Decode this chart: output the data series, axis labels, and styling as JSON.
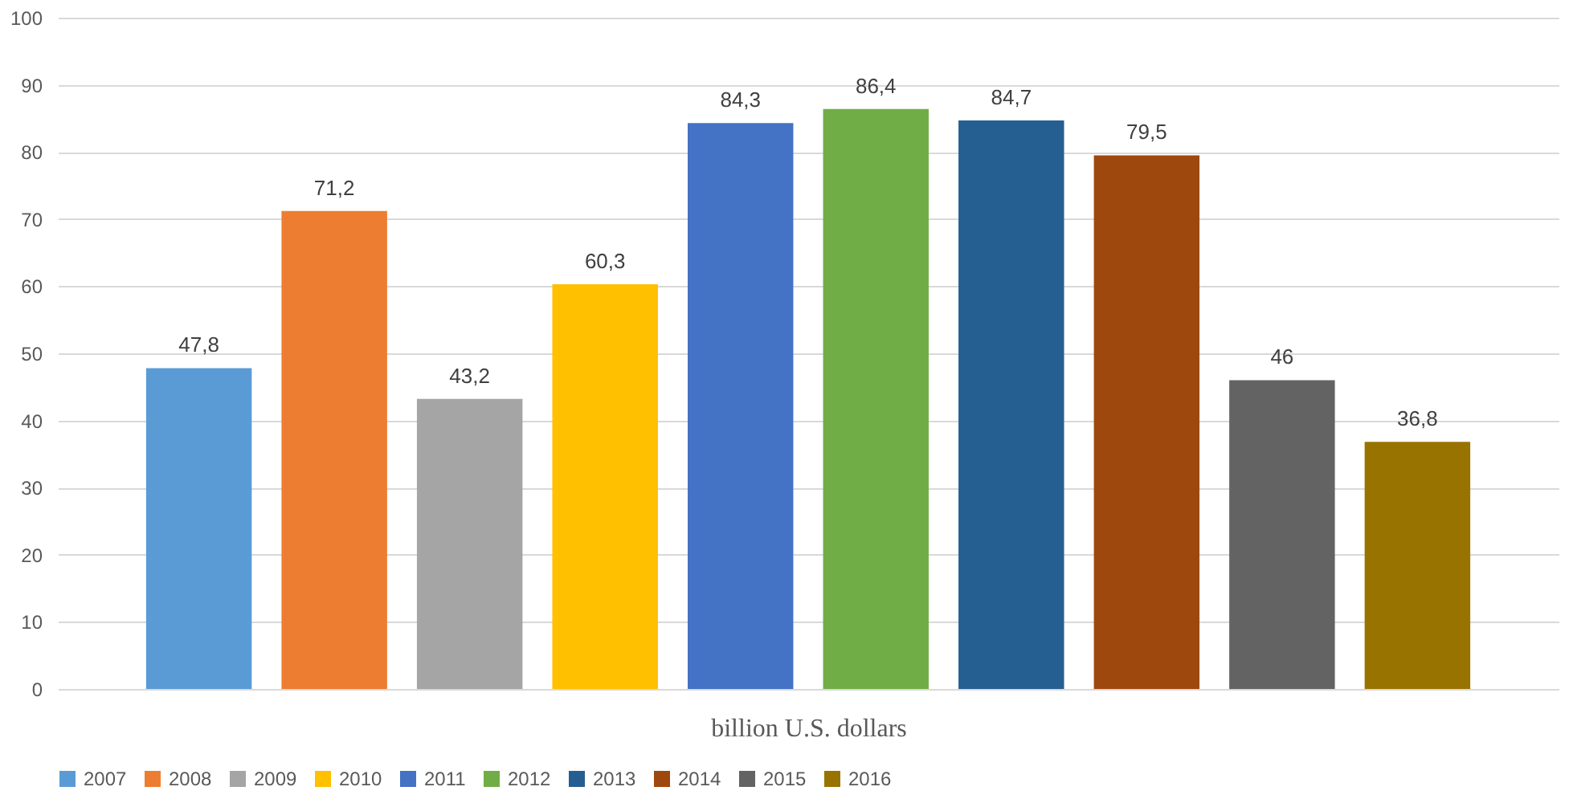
{
  "chart_data": {
    "type": "bar",
    "categories": [
      null
    ],
    "xlabel": "billion U.S. dollars",
    "series": [
      {
        "name": "2007",
        "color": "#5b9bd5",
        "values": [
          47.8
        ],
        "value_labels": [
          "47,8"
        ]
      },
      {
        "name": "2008",
        "color": "#ed7d31",
        "values": [
          71.2
        ],
        "value_labels": [
          "71,2"
        ]
      },
      {
        "name": "2009",
        "color": "#a5a5a5",
        "values": [
          43.2
        ],
        "value_labels": [
          "43,2"
        ]
      },
      {
        "name": "2010",
        "color": "#ffc000",
        "values": [
          60.3
        ],
        "value_labels": [
          "60,3"
        ]
      },
      {
        "name": "2011",
        "color": "#4472c4",
        "values": [
          84.3
        ],
        "value_labels": [
          "84,3"
        ]
      },
      {
        "name": "2012",
        "color": "#70ad47",
        "values": [
          86.4
        ],
        "value_labels": [
          "86,4"
        ]
      },
      {
        "name": "2013",
        "color": "#255e91",
        "values": [
          84.7
        ],
        "value_labels": [
          "84,7"
        ]
      },
      {
        "name": "2014",
        "color": "#9e480e",
        "values": [
          79.5
        ],
        "value_labels": [
          "79,5"
        ]
      },
      {
        "name": "2015",
        "color": "#636363",
        "values": [
          46
        ],
        "value_labels": [
          "46"
        ]
      },
      {
        "name": "2016",
        "color": "#997300",
        "values": [
          36.8
        ],
        "value_labels": [
          "36,8"
        ]
      }
    ],
    "ylim": [
      0,
      100
    ],
    "yticks": [
      0,
      10,
      20,
      30,
      40,
      50,
      60,
      70,
      80,
      90,
      100
    ],
    "grid": "y",
    "legend": "bottom"
  }
}
